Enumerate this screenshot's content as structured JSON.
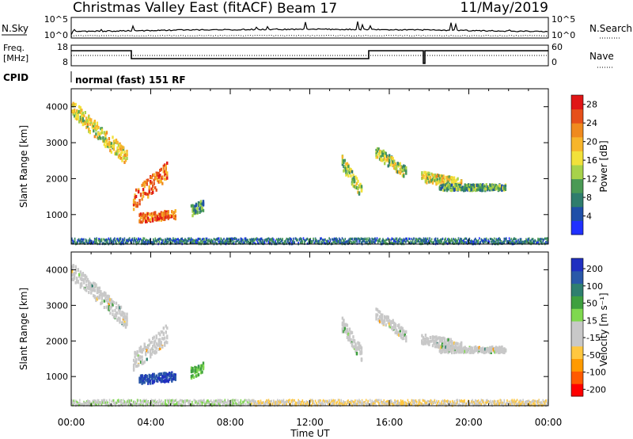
{
  "header": {
    "radar": "Christmas Valley East (fitACF)",
    "beam": "Beam 17",
    "date": "11/May/2019"
  },
  "top_panels": {
    "nsky_label": "N.Sky",
    "nsky_ticks": [
      "10^5",
      "10^0"
    ],
    "nsearch_label": "N.Search",
    "nsearch_ticks": [
      "10^5",
      "10^0"
    ],
    "freq_label_1": "Freq.",
    "freq_label_2": "[MHz]",
    "freq_ticks": [
      "18",
      "8"
    ],
    "nave_label": "Nave",
    "nave_ticks": [
      "60",
      "0"
    ],
    "cpid_label": "CPID",
    "cpid_text": "normal (fast) 151 RF"
  },
  "colors": {
    "power_scale": [
      "#2030ff",
      "#1f4fa8",
      "#2f7d6d",
      "#4a9a55",
      "#a7d24a",
      "#f2e13a",
      "#f7b52b",
      "#f08a1e",
      "#e6501a",
      "#e01616"
    ],
    "velocity_scale": [
      "#ff0000",
      "#ff5a00",
      "#ff9a00",
      "#ffc740",
      "#c8c8c8",
      "#c8c8c8",
      "#7fd84f",
      "#3fa03f",
      "#2f7f6f",
      "#2a58a8",
      "#2030c0"
    ]
  },
  "chart_data": [
    {
      "type": "heatmap",
      "ylabel": "Slant Range [km]",
      "xlabel": "",
      "x_ticks": [
        "00:00",
        "04:00",
        "08:00",
        "12:00",
        "16:00",
        "20:00",
        "00:00"
      ],
      "y_ticks": [
        "1000",
        "2000",
        "3000",
        "4000"
      ],
      "xlim": [
        0,
        24
      ],
      "ylim": [
        180,
        4500
      ],
      "colorbar_label": "Power [dB]",
      "colorbar_ticks": [
        "4",
        "8",
        "12",
        "16",
        "20",
        "24",
        "28"
      ],
      "colorbar_range": [
        0,
        30
      ],
      "features": [
        {
          "t0": 0.0,
          "r0": 3950,
          "t1": 2.8,
          "r1": 2550,
          "width": 230,
          "value": 16
        },
        {
          "t0": 3.1,
          "r0": 1400,
          "t1": 4.8,
          "r1": 2200,
          "width": 260,
          "value": 24
        },
        {
          "t0": 3.4,
          "r0": 900,
          "t1": 5.2,
          "r1": 1000,
          "width": 120,
          "value": 24
        },
        {
          "t0": 6.0,
          "r0": 1100,
          "t1": 6.6,
          "r1": 1250,
          "width": 150,
          "value": 9
        },
        {
          "t0": 13.6,
          "r0": 2450,
          "t1": 14.6,
          "r1": 1600,
          "width": 200,
          "value": 14
        },
        {
          "t0": 15.3,
          "r0": 2750,
          "t1": 16.8,
          "r1": 2150,
          "width": 160,
          "value": 14
        },
        {
          "t0": 17.6,
          "r0": 2050,
          "t1": 19.6,
          "r1": 1850,
          "width": 140,
          "value": 16
        },
        {
          "t0": 18.5,
          "r0": 1750,
          "t1": 21.8,
          "r1": 1750,
          "width": 80,
          "value": 10
        }
      ]
    },
    {
      "type": "heatmap",
      "ylabel": "Slant Range [km]",
      "xlabel": "Time UT",
      "x_ticks": [
        "00:00",
        "04:00",
        "08:00",
        "12:00",
        "16:00",
        "20:00",
        "00:00"
      ],
      "y_ticks": [
        "1000",
        "2000",
        "3000",
        "4000"
      ],
      "xlim": [
        0,
        24
      ],
      "ylim": [
        180,
        4500
      ],
      "colorbar_label": "Velocity [m s⁻¹]",
      "colorbar_ticks": [
        "200",
        "100",
        "50",
        "15",
        "-15",
        "-50",
        "-100",
        "-200"
      ],
      "colorbar_range": [
        -250,
        250
      ],
      "features": [
        {
          "t0": 0.0,
          "r0": 3950,
          "t1": 2.8,
          "r1": 2550,
          "width": 230,
          "value": 0
        },
        {
          "t0": 3.1,
          "r0": 1400,
          "t1": 4.8,
          "r1": 2200,
          "width": 260,
          "value": 0
        },
        {
          "t0": 3.4,
          "r0": 900,
          "t1": 5.2,
          "r1": 1000,
          "width": 120,
          "value": 200
        },
        {
          "t0": 6.0,
          "r0": 1100,
          "t1": 6.6,
          "r1": 1250,
          "width": 150,
          "value": 80
        },
        {
          "t0": 13.6,
          "r0": 2450,
          "t1": 14.6,
          "r1": 1600,
          "width": 200,
          "value": 0
        },
        {
          "t0": 15.3,
          "r0": 2750,
          "t1": 16.8,
          "r1": 2150,
          "width": 160,
          "value": 0
        },
        {
          "t0": 17.6,
          "r0": 2050,
          "t1": 19.6,
          "r1": 1850,
          "width": 140,
          "value": 0
        },
        {
          "t0": 18.5,
          "r0": 1750,
          "t1": 21.8,
          "r1": 1750,
          "width": 80,
          "value": 0
        }
      ]
    }
  ]
}
